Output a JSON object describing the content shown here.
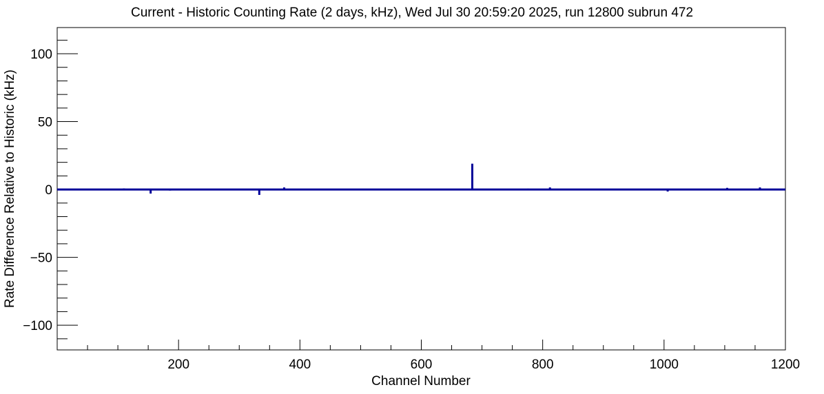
{
  "chart_data": {
    "type": "line",
    "title": "Current - Historic Counting Rate (2 days, kHz), Wed Jul 30 20:59:20 2025, run 12800 subrun 472",
    "xlabel": "Channel Number",
    "ylabel": "Rate Difference Relative to Historic (kHz)",
    "xlim": [
      0,
      1200
    ],
    "ylim": [
      -118.2,
      119.3
    ],
    "x_major_ticks": [
      200,
      400,
      600,
      800,
      1000,
      1200
    ],
    "x_minor_step": 50,
    "y_major_ticks": [
      -100,
      -50,
      0,
      50,
      100
    ],
    "y_minor_step": 10,
    "grid": false,
    "legend": "none",
    "line_color": "#000099",
    "frame_color": "#000000",
    "background_color": "#ffffff",
    "series": [
      {
        "name": "rate-difference-current-minus-historic",
        "baseline": 0,
        "spikes": [
          {
            "channel": 110,
            "value": 0.8
          },
          {
            "channel": 154,
            "value": -3
          },
          {
            "channel": 186,
            "value": -0.8
          },
          {
            "channel": 333,
            "value": -4
          },
          {
            "channel": 374,
            "value": 1.5
          },
          {
            "channel": 576,
            "value": -0.6
          },
          {
            "channel": 684,
            "value": 19
          },
          {
            "channel": 776,
            "value": 0.6
          },
          {
            "channel": 812,
            "value": 1.5
          },
          {
            "channel": 1006,
            "value": -1.5
          },
          {
            "channel": 1070,
            "value": -0.6
          },
          {
            "channel": 1104,
            "value": 1.2
          },
          {
            "channel": 1158,
            "value": 1.5
          }
        ]
      }
    ]
  }
}
